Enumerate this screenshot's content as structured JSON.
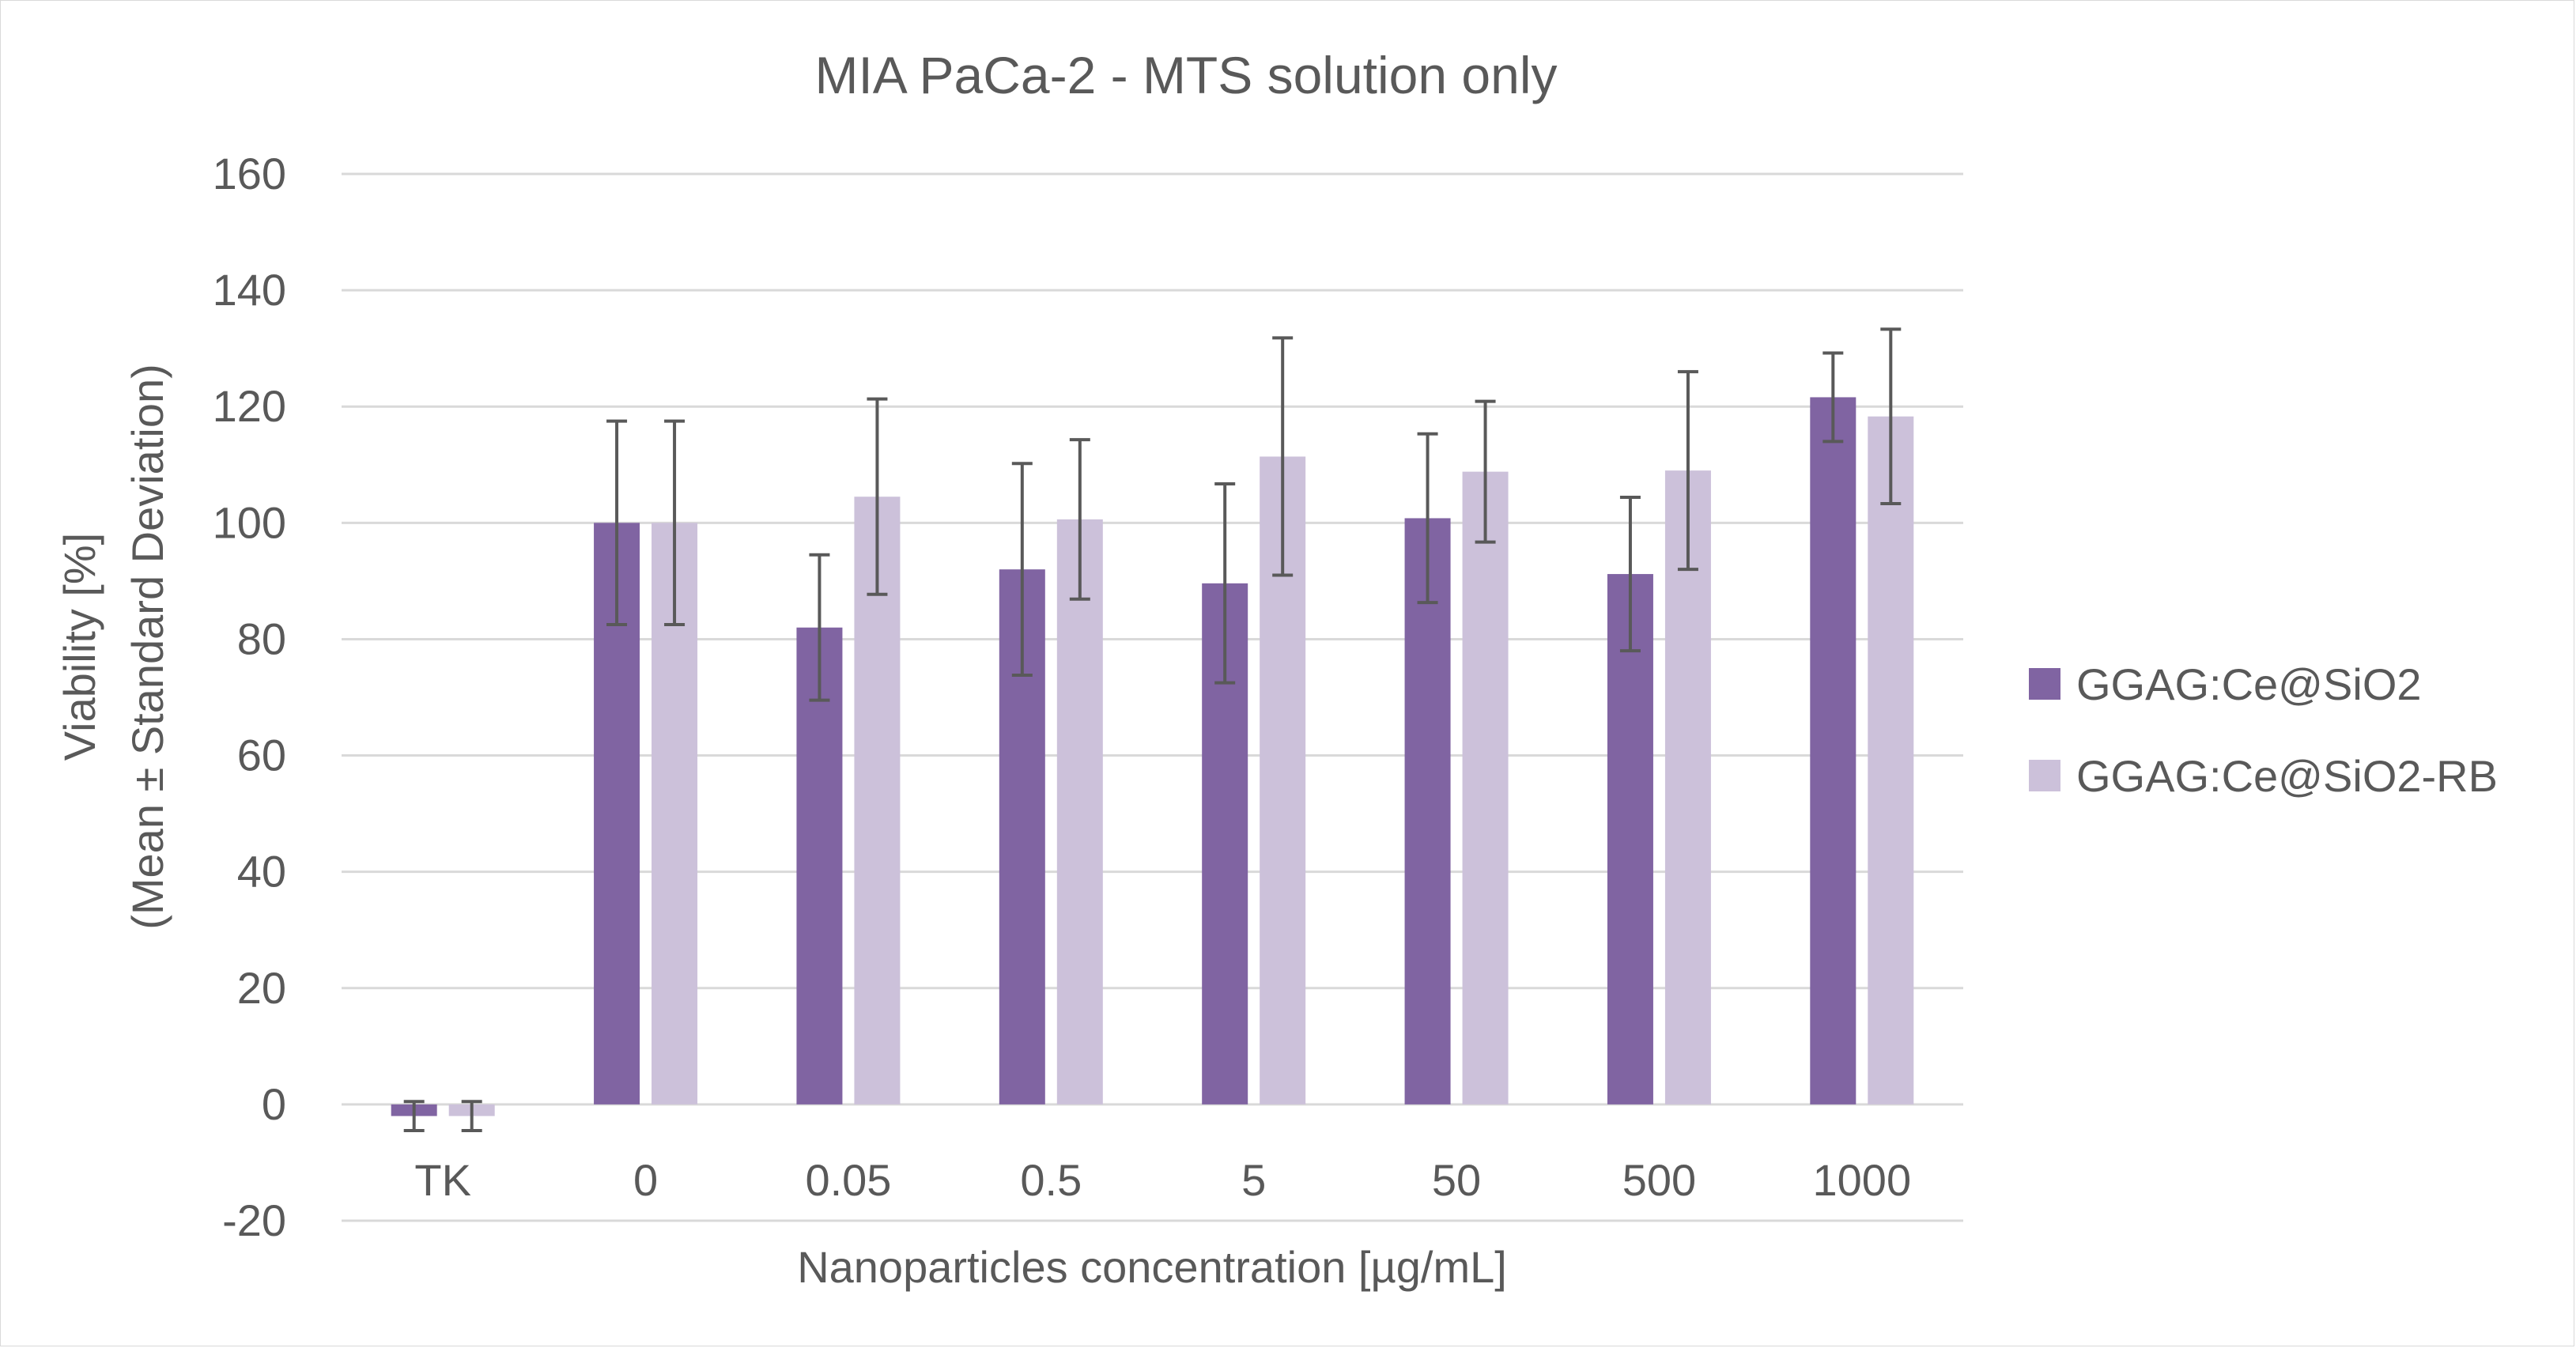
{
  "chart_data": {
    "type": "bar",
    "title": "MIA PaCa-2 - MTS solution only",
    "xlabel": "Nanoparticles concentration [µg/mL]",
    "ylabel_lines": [
      "Viability [%]",
      "(Mean ± Standard Deviation)"
    ],
    "categories": [
      "TK",
      "0",
      "0.05",
      "0.5",
      "5",
      "50",
      "500",
      "1000"
    ],
    "ylim": [
      -20,
      160
    ],
    "yticks": [
      -20,
      0,
      20,
      40,
      60,
      80,
      100,
      120,
      140,
      160
    ],
    "grid": true,
    "legend_position": "right",
    "series": [
      {
        "name": "GGAG:Ce@SiO2",
        "color": "#8064a2",
        "values": [
          -2.0,
          100.0,
          82.0,
          92.0,
          89.6,
          100.8,
          91.2,
          121.6
        ],
        "errors": [
          2.5,
          17.5,
          12.5,
          18.2,
          17.1,
          14.5,
          13.2,
          7.6
        ]
      },
      {
        "name": "GGAG:Ce@SiO2-RB",
        "color": "#ccc1da",
        "values": [
          -2.0,
          100.0,
          104.5,
          100.6,
          111.4,
          108.8,
          109.0,
          118.3
        ],
        "errors": [
          2.5,
          17.5,
          16.8,
          13.7,
          20.4,
          12.1,
          17.0,
          15.0
        ]
      }
    ]
  }
}
